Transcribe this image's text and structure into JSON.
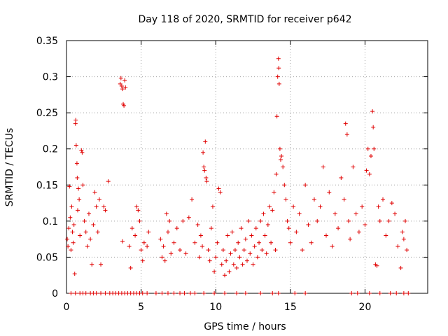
{
  "chart_data": {
    "type": "scatter",
    "title": "Day 118 of 2020, SRMTID for receiver p642",
    "xlabel": "GPS time / hours",
    "ylabel": "SRMTID / TECUs",
    "xlim": [
      0,
      24.2
    ],
    "ylim": [
      0,
      0.35
    ],
    "xticks": [
      0,
      5,
      10,
      15,
      20
    ],
    "xtick_labels": [
      "0",
      "5",
      "10",
      "15",
      "20"
    ],
    "yticks": [
      0,
      0.05,
      0.1,
      0.15,
      0.2,
      0.25,
      0.3,
      0.35
    ],
    "ytick_labels": [
      "0",
      "0.05",
      "0.1",
      "0.15",
      "0.2",
      "0.25",
      "0.3",
      "0.35"
    ],
    "grid": true,
    "marker": "+",
    "color": "#e00000",
    "series": [
      {
        "name": "SRMTID",
        "points": [
          [
            0.05,
            0.075
          ],
          [
            0.1,
            0.065
          ],
          [
            0.15,
            0.09
          ],
          [
            0.2,
            0.148
          ],
          [
            0.25,
            0.105
          ],
          [
            0.3,
            0.06
          ],
          [
            0.35,
            0.12
          ],
          [
            0.4,
            0.085
          ],
          [
            0.45,
            0.07
          ],
          [
            0.5,
            0.095
          ],
          [
            0.55,
            0.027
          ],
          [
            0.6,
            0.235
          ],
          [
            0.62,
            0.24
          ],
          [
            0.65,
            0.205
          ],
          [
            0.7,
            0.18
          ],
          [
            0.72,
            0.16
          ],
          [
            0.75,
            0.115
          ],
          [
            0.8,
            0.145
          ],
          [
            0.85,
            0.13
          ],
          [
            0.9,
            0.08
          ],
          [
            1.0,
            0.198
          ],
          [
            1.05,
            0.195
          ],
          [
            1.1,
            0.15
          ],
          [
            1.2,
            0.1
          ],
          [
            1.3,
            0.085
          ],
          [
            1.4,
            0.065
          ],
          [
            1.5,
            0.11
          ],
          [
            1.6,
            0.075
          ],
          [
            1.7,
            0.04
          ],
          [
            1.8,
            0.095
          ],
          [
            1.9,
            0.14
          ],
          [
            2.0,
            0.12
          ],
          [
            2.1,
            0.085
          ],
          [
            2.2,
            0.13
          ],
          [
            2.3,
            0.04
          ],
          [
            2.5,
            0.12
          ],
          [
            2.6,
            0.115
          ],
          [
            2.8,
            0.155
          ],
          [
            3.6,
            0.29
          ],
          [
            3.65,
            0.298
          ],
          [
            3.7,
            0.287
          ],
          [
            3.75,
            0.283
          ],
          [
            3.8,
            0.262
          ],
          [
            3.85,
            0.26
          ],
          [
            3.9,
            0.295
          ],
          [
            3.95,
            0.285
          ],
          [
            3.75,
            0.072
          ],
          [
            4.2,
            0.065
          ],
          [
            4.3,
            0.035
          ],
          [
            4.4,
            0.09
          ],
          [
            4.6,
            0.08
          ],
          [
            4.7,
            0.12
          ],
          [
            4.8,
            0.115
          ],
          [
            4.9,
            0.1
          ],
          [
            5.0,
            0.06
          ],
          [
            5.1,
            0.045
          ],
          [
            5.2,
            0.07
          ],
          [
            5.4,
            0.065
          ],
          [
            5.5,
            0.085
          ],
          [
            6.3,
            0.075
          ],
          [
            6.4,
            0.05
          ],
          [
            6.5,
            0.065
          ],
          [
            6.6,
            0.045
          ],
          [
            6.7,
            0.11
          ],
          [
            6.8,
            0.085
          ],
          [
            6.9,
            0.1
          ],
          [
            7.0,
            0.055
          ],
          [
            7.2,
            0.07
          ],
          [
            7.4,
            0.09
          ],
          [
            7.6,
            0.06
          ],
          [
            7.8,
            0.1
          ],
          [
            8.0,
            0.055
          ],
          [
            8.2,
            0.105
          ],
          [
            8.4,
            0.13
          ],
          [
            8.6,
            0.07
          ],
          [
            8.8,
            0.095
          ],
          [
            8.9,
            0.05
          ],
          [
            9.0,
            0.08
          ],
          [
            9.1,
            0.065
          ],
          [
            9.15,
            0.195
          ],
          [
            9.2,
            0.175
          ],
          [
            9.25,
            0.17
          ],
          [
            9.3,
            0.21
          ],
          [
            9.35,
            0.16
          ],
          [
            9.4,
            0.155
          ],
          [
            9.5,
            0.06
          ],
          [
            9.6,
            0.045
          ],
          [
            9.7,
            0.09
          ],
          [
            9.8,
            0.12
          ],
          [
            9.9,
            0.03
          ],
          [
            10.0,
            0.05
          ],
          [
            10.1,
            0.07
          ],
          [
            10.2,
            0.145
          ],
          [
            10.3,
            0.14
          ],
          [
            10.4,
            0.04
          ],
          [
            10.5,
            0.06
          ],
          [
            10.6,
            0.025
          ],
          [
            10.7,
            0.045
          ],
          [
            10.8,
            0.08
          ],
          [
            10.9,
            0.03
          ],
          [
            11.0,
            0.055
          ],
          [
            11.1,
            0.085
          ],
          [
            11.2,
            0.04
          ],
          [
            11.3,
            0.06
          ],
          [
            11.4,
            0.035
          ],
          [
            11.5,
            0.07
          ],
          [
            11.6,
            0.05
          ],
          [
            11.7,
            0.09
          ],
          [
            11.8,
            0.04
          ],
          [
            11.9,
            0.06
          ],
          [
            12.0,
            0.075
          ],
          [
            12.1,
            0.045
          ],
          [
            12.2,
            0.1
          ],
          [
            12.3,
            0.055
          ],
          [
            12.4,
            0.08
          ],
          [
            12.5,
            0.04
          ],
          [
            12.6,
            0.065
          ],
          [
            12.7,
            0.09
          ],
          [
            12.8,
            0.05
          ],
          [
            12.9,
            0.07
          ],
          [
            13.0,
            0.1
          ],
          [
            13.1,
            0.06
          ],
          [
            13.2,
            0.11
          ],
          [
            13.3,
            0.08
          ],
          [
            13.4,
            0.055
          ],
          [
            13.5,
            0.095
          ],
          [
            13.6,
            0.12
          ],
          [
            13.7,
            0.07
          ],
          [
            13.8,
            0.115
          ],
          [
            13.9,
            0.14
          ],
          [
            14.0,
            0.06
          ],
          [
            14.05,
            0.165
          ],
          [
            14.1,
            0.245
          ],
          [
            14.15,
            0.3
          ],
          [
            14.2,
            0.325
          ],
          [
            14.22,
            0.312
          ],
          [
            14.25,
            0.29
          ],
          [
            14.3,
            0.2
          ],
          [
            14.35,
            0.185
          ],
          [
            14.4,
            0.19
          ],
          [
            14.5,
            0.175
          ],
          [
            14.6,
            0.15
          ],
          [
            14.7,
            0.13
          ],
          [
            14.8,
            0.1
          ],
          [
            14.9,
            0.09
          ],
          [
            15.0,
            0.07
          ],
          [
            15.2,
            0.12
          ],
          [
            15.4,
            0.085
          ],
          [
            15.6,
            0.11
          ],
          [
            15.8,
            0.06
          ],
          [
            16.0,
            0.15
          ],
          [
            16.2,
            0.095
          ],
          [
            16.4,
            0.07
          ],
          [
            16.6,
            0.13
          ],
          [
            16.8,
            0.1
          ],
          [
            17.0,
            0.12
          ],
          [
            17.2,
            0.175
          ],
          [
            17.4,
            0.08
          ],
          [
            17.6,
            0.14
          ],
          [
            17.8,
            0.065
          ],
          [
            18.0,
            0.11
          ],
          [
            18.2,
            0.09
          ],
          [
            18.4,
            0.16
          ],
          [
            18.6,
            0.13
          ],
          [
            18.7,
            0.235
          ],
          [
            18.8,
            0.22
          ],
          [
            18.9,
            0.1
          ],
          [
            19.0,
            0.075
          ],
          [
            19.2,
            0.175
          ],
          [
            19.4,
            0.11
          ],
          [
            19.6,
            0.085
          ],
          [
            19.8,
            0.12
          ],
          [
            20.0,
            0.095
          ],
          [
            20.1,
            0.17
          ],
          [
            20.2,
            0.2
          ],
          [
            20.3,
            0.165
          ],
          [
            20.4,
            0.19
          ],
          [
            20.5,
            0.252
          ],
          [
            20.55,
            0.23
          ],
          [
            20.6,
            0.2
          ],
          [
            20.7,
            0.04
          ],
          [
            20.8,
            0.038
          ],
          [
            20.9,
            0.12
          ],
          [
            21.0,
            0.1
          ],
          [
            21.2,
            0.13
          ],
          [
            21.4,
            0.08
          ],
          [
            21.6,
            0.1
          ],
          [
            21.8,
            0.125
          ],
          [
            22.0,
            0.11
          ],
          [
            22.2,
            0.065
          ],
          [
            22.4,
            0.035
          ],
          [
            22.5,
            0.085
          ],
          [
            22.6,
            0.075
          ],
          [
            22.7,
            0.1
          ],
          [
            22.8,
            0.06
          ]
        ]
      }
    ],
    "zero_points_x": [
      0.3,
      0.6,
      0.9,
      1.1,
      1.3,
      1.6,
      1.8,
      2.0,
      2.3,
      2.6,
      2.9,
      3.1,
      3.3,
      3.5,
      3.7,
      3.9,
      4.1,
      4.3,
      4.5,
      4.7,
      4.9,
      5.1,
      5.4,
      6.0,
      6.4,
      6.8,
      7.2,
      7.6,
      7.9,
      8.3,
      8.6,
      9.2,
      9.9,
      10.6,
      11.4,
      12.0,
      13.0,
      13.8,
      14.2,
      15.3,
      16.0,
      19.1,
      19.5,
      20.3,
      21.0,
      21.7,
      22.1,
      22.6,
      22.9
    ]
  }
}
